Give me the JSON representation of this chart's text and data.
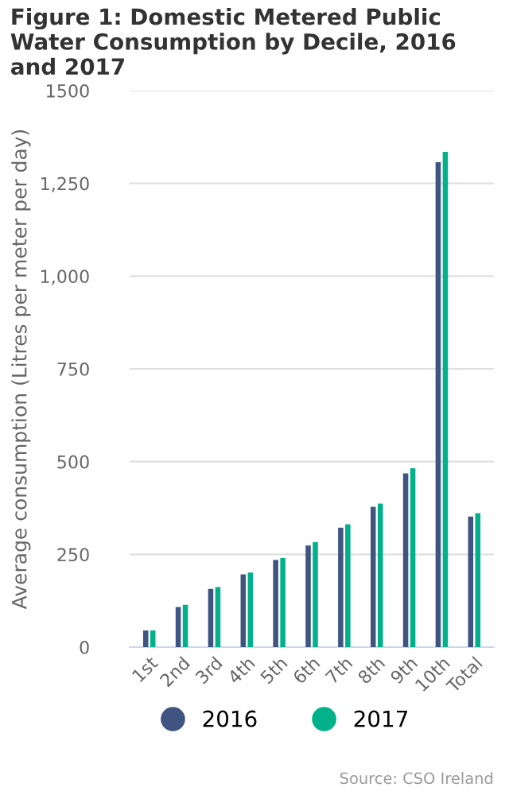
{
  "chart_data": {
    "type": "bar",
    "title": "Figure 1: Domestic Metered Public Water Consumption by Decile, 2016 and 2017",
    "ylabel": "Average consumption (Litres per meter per day)",
    "categories": [
      "1st",
      "2nd",
      "3rd",
      "4th",
      "5th",
      "6th",
      "7th",
      "8th",
      "9th",
      "10th",
      "Total"
    ],
    "series": [
      {
        "name": "2016",
        "color": "#3f5480",
        "values": [
          45,
          108,
          157,
          196,
          235,
          274,
          322,
          378,
          468,
          1307,
          352
        ]
      },
      {
        "name": "2017",
        "color": "#00b18b",
        "values": [
          45,
          114,
          162,
          201,
          240,
          283,
          331,
          387,
          482,
          1335,
          361
        ]
      }
    ],
    "ylim": [
      0,
      1500
    ],
    "yticks": [
      0,
      250,
      500,
      750,
      {
        "value": 1000,
        "label": "1,000"
      },
      {
        "value": 1250,
        "label": "1,250"
      },
      1500
    ],
    "grid": "y",
    "legend": "bottom",
    "annotations": [
      "Source: CSO Ireland"
    ]
  }
}
